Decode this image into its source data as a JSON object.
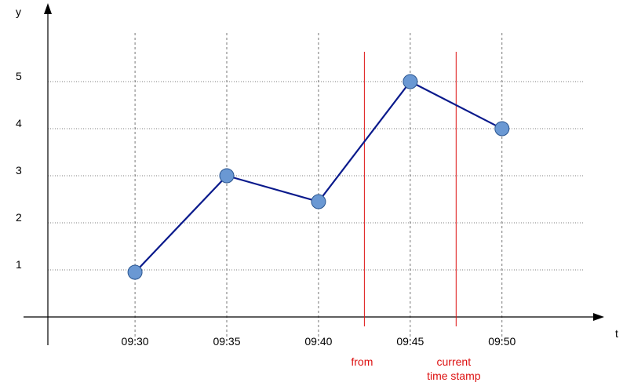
{
  "colors": {
    "series": "#0a1a8c",
    "point_fill": "#6a98d3",
    "point_stroke": "#2a5590",
    "marker": "#dd1111",
    "grid": "#555555",
    "axis": "#000000"
  },
  "chart_data": {
    "type": "line",
    "title": "",
    "xlabel": "t",
    "ylabel": "y",
    "x": [
      "09:30",
      "09:35",
      "09:40",
      "09:45",
      "09:50"
    ],
    "x_minutes": [
      0,
      5,
      10,
      15,
      20
    ],
    "xlim_minutes": [
      -4.75,
      24.5
    ],
    "ylim": [
      0,
      6.6
    ],
    "y_ticks": [
      1,
      2,
      3,
      4,
      5
    ],
    "grid": true,
    "series": [
      {
        "values": [
          0.95,
          3.0,
          2.45,
          5.0,
          4.0
        ]
      }
    ],
    "markers": [
      {
        "label": "from",
        "minute": 12.5
      },
      {
        "label": "current\ntime stamp",
        "minute": 17.5
      }
    ]
  }
}
